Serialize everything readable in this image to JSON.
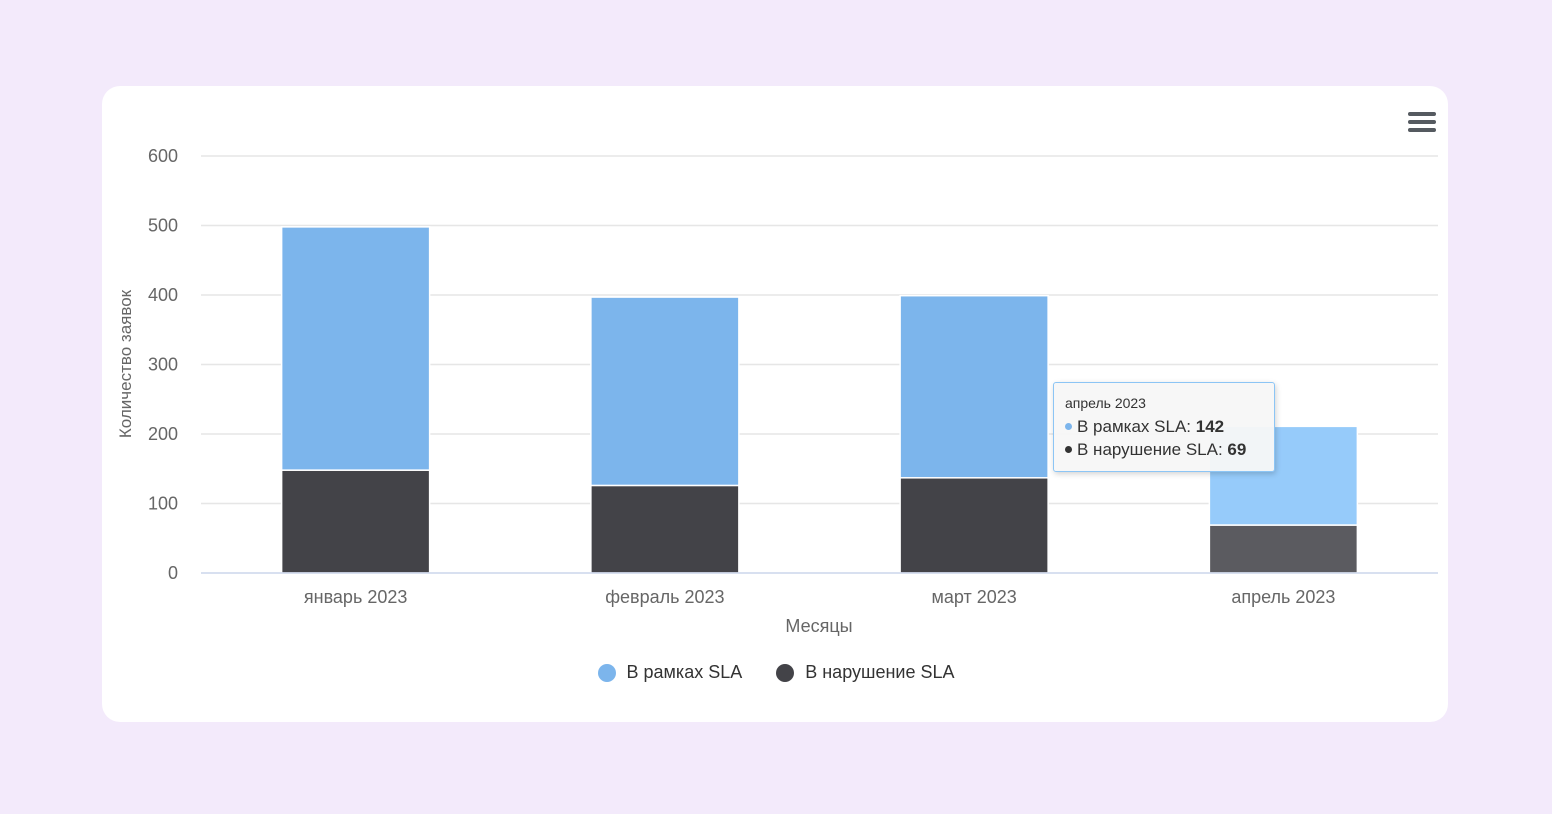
{
  "menu": {
    "icon": "hamburger-menu-icon"
  },
  "chart_data": {
    "type": "bar",
    "stacked": true,
    "categories": [
      "январь 2023",
      "февраль 2023",
      "март 2023",
      "апрель 2023"
    ],
    "series": [
      {
        "name": "В нарушение SLA",
        "values": [
          148,
          126,
          137,
          69
        ],
        "color": "#434348"
      },
      {
        "name": "В рамках SLA",
        "values": [
          350,
          271,
          262,
          142
        ],
        "color": "#7cb5ec"
      }
    ],
    "xlabel": "Месяцы",
    "ylabel": "Количество заявок",
    "ylim": [
      0,
      600
    ],
    "yticks": [
      "0",
      "100",
      "200",
      "300",
      "400",
      "500",
      "600"
    ],
    "grid": true,
    "legend_placement": "bottom-center",
    "highlighted_category": "апрель 2023"
  },
  "legend": [
    {
      "label": "В рамках SLA",
      "color": "#7cb5ec"
    },
    {
      "label": "В нарушение SLA",
      "color": "#434348"
    }
  ],
  "tooltip": {
    "title": "апрель 2023",
    "rows": [
      {
        "label": "В рамках SLA: ",
        "value": "142",
        "color": "#7cb5ec"
      },
      {
        "label": "В нарушение SLA: ",
        "value": "69",
        "color": "#333333"
      }
    ]
  }
}
